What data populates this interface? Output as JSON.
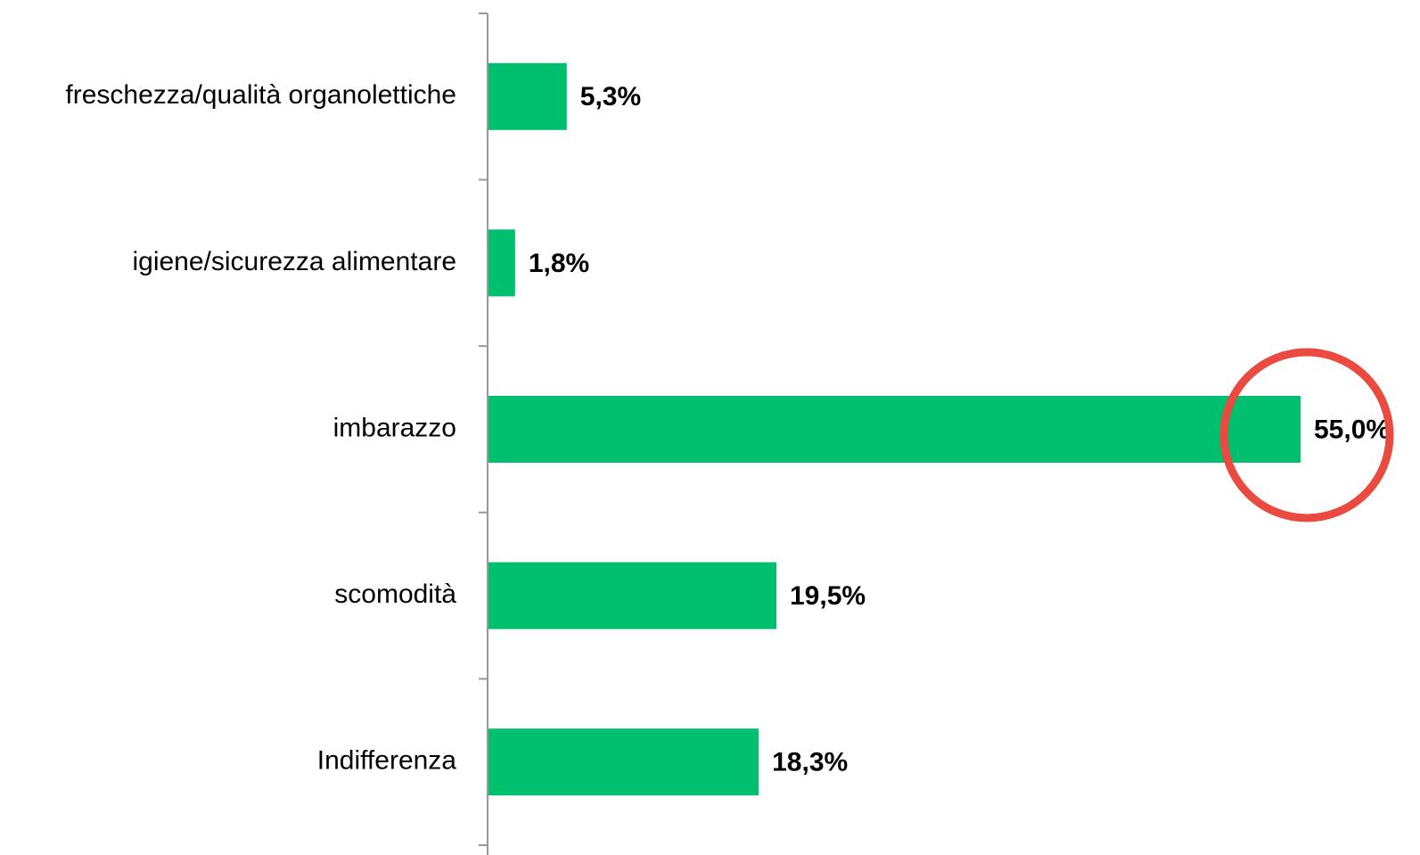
{
  "chart_data": {
    "type": "bar",
    "orientation": "horizontal",
    "categories": [
      "freschezza/qualità organolettiche",
      "igiene/sicurezza alimentare",
      "imbarazzo",
      "scomodità",
      "Indifferenza"
    ],
    "values": [
      5.3,
      1.8,
      55.0,
      19.5,
      18.3
    ],
    "value_labels": [
      "5,3%",
      "1,8%",
      "55,0%",
      "19,5%",
      "18,3%"
    ],
    "color": "#00bf6f"
  }
}
